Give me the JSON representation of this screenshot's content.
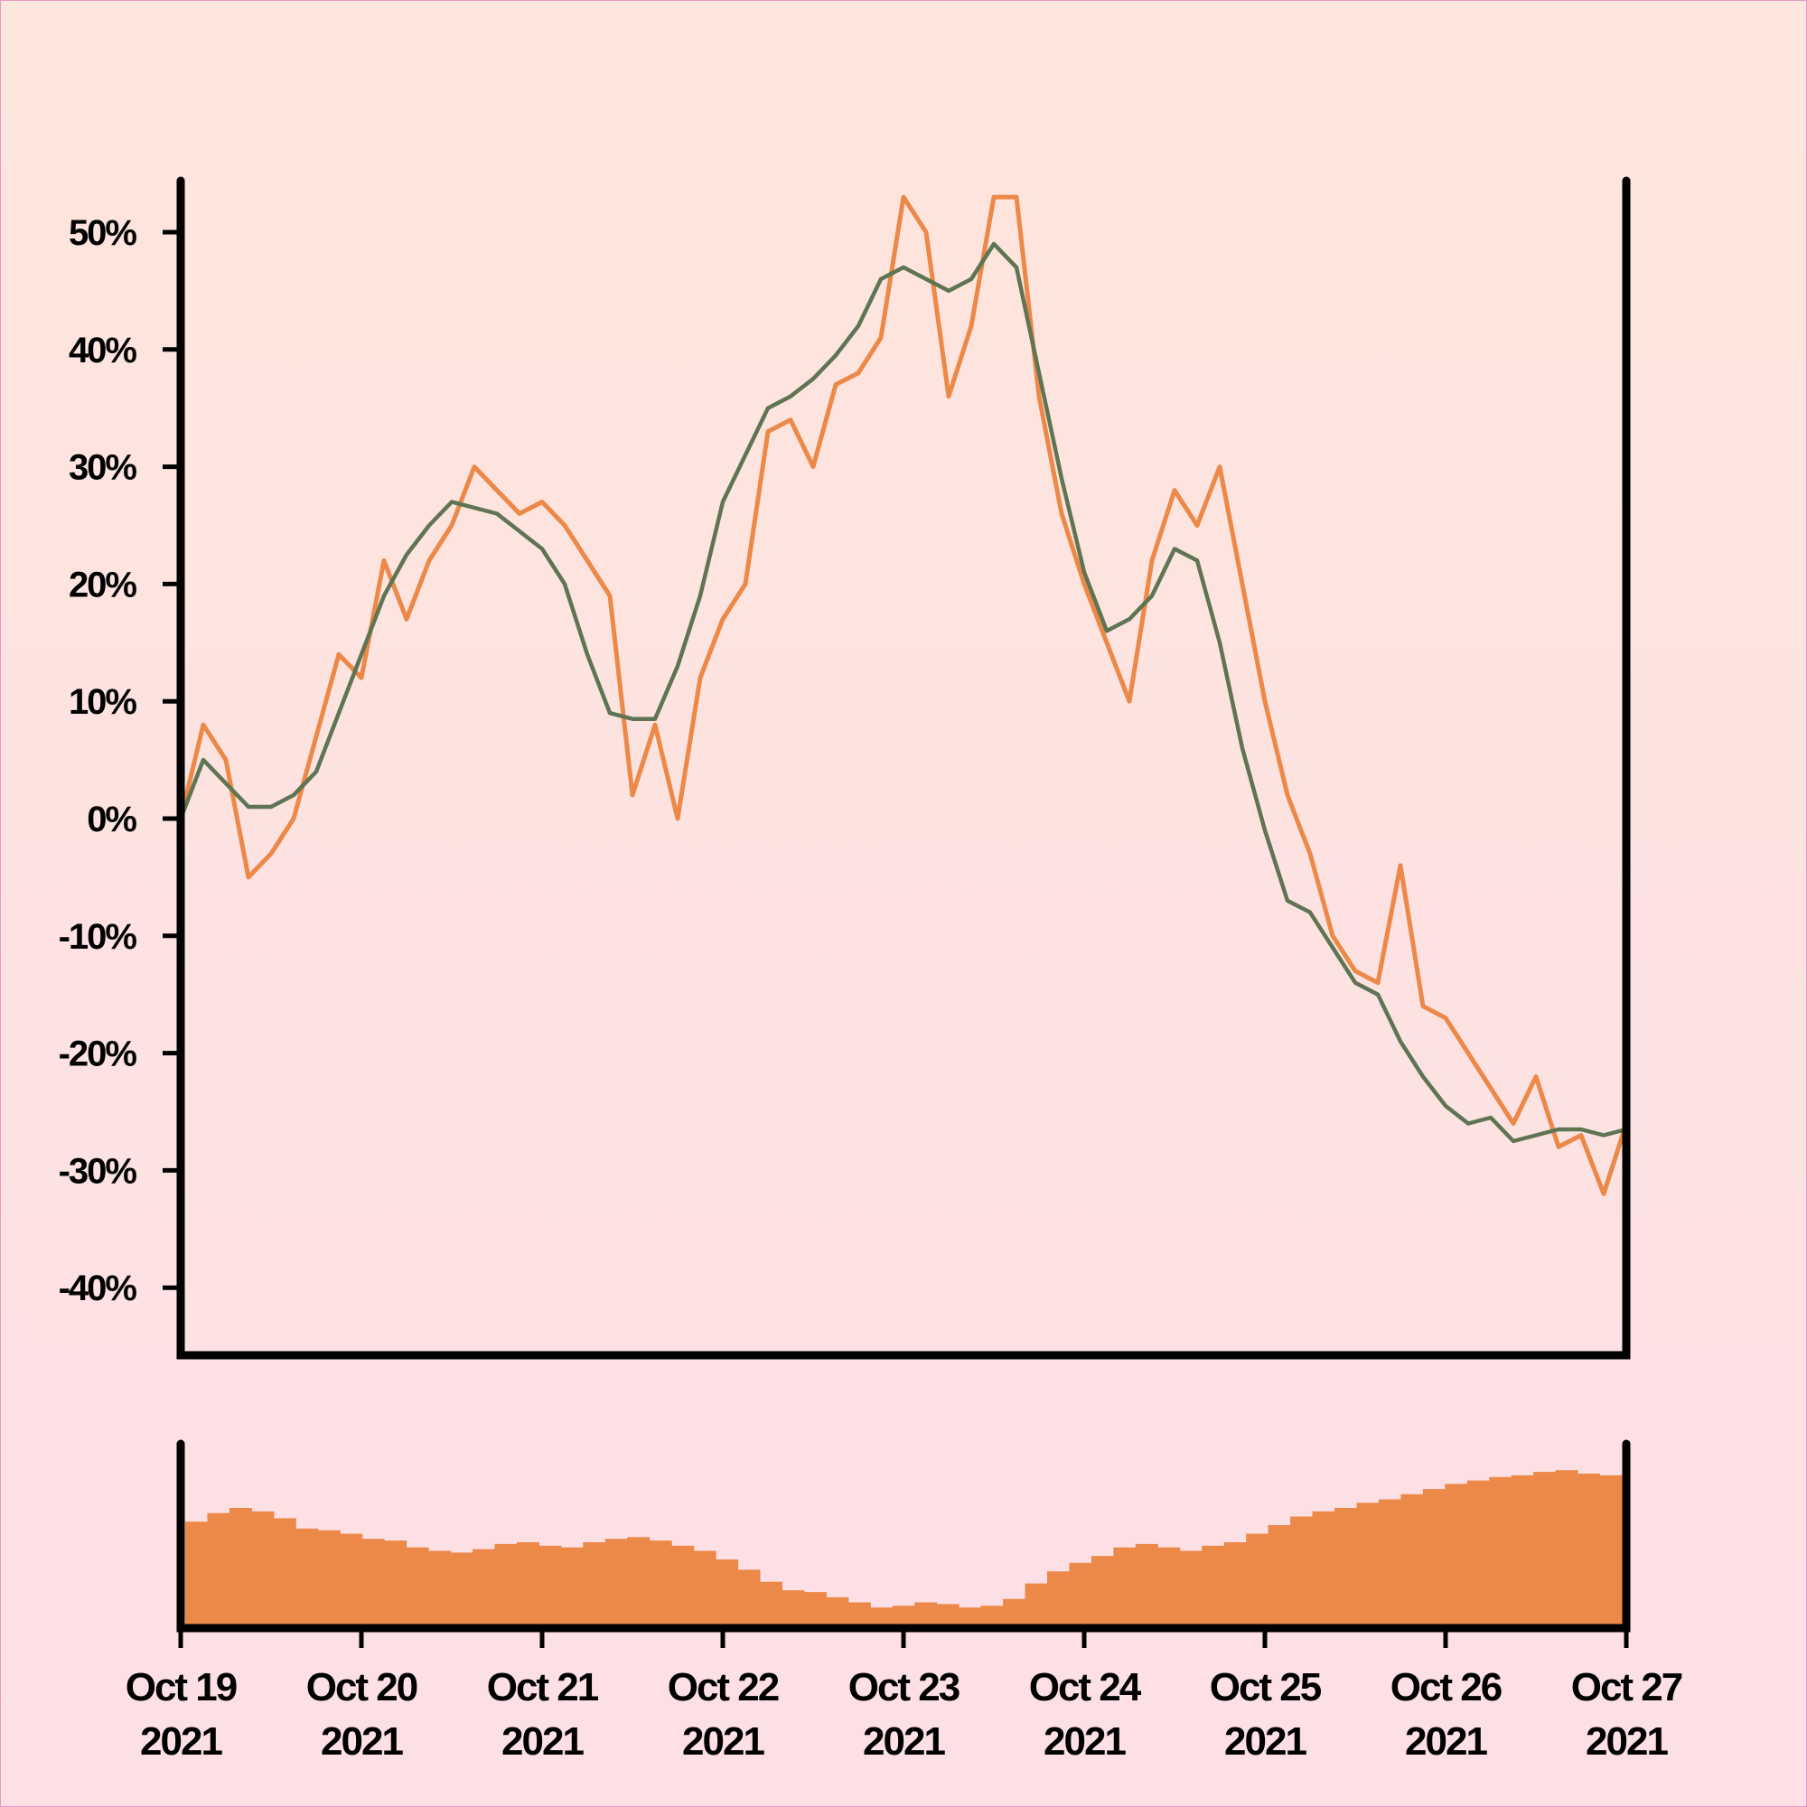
{
  "colors": {
    "price_line": "#ec8848",
    "moving_average": "#5e7452",
    "volume_bars": "#ec8848",
    "axes": "#000000"
  },
  "chart_data": {
    "type": "line",
    "title": "",
    "xlabel": "",
    "ylabel": "",
    "grid": false,
    "legend": "none",
    "x_range": [
      "2021-10-19",
      "2021-10-27"
    ],
    "ylim": [
      -45,
      54
    ],
    "y_ticks": [
      "50%",
      "40%",
      "30%",
      "20%",
      "10%",
      "0%",
      "-10%",
      "-20%",
      "-30%",
      "-40%"
    ],
    "y_tick_values": [
      50,
      40,
      30,
      20,
      10,
      0,
      -10,
      -20,
      -30,
      -40
    ],
    "x_ticks": [
      {
        "date": "2021-10-19",
        "line1": "Oct 19",
        "line2": "2021"
      },
      {
        "date": "2021-10-20",
        "line1": "Oct 20",
        "line2": "2021"
      },
      {
        "date": "2021-10-21",
        "line1": "Oct 21",
        "line2": "2021"
      },
      {
        "date": "2021-10-22",
        "line1": "Oct 22",
        "line2": "2021"
      },
      {
        "date": "2021-10-23",
        "line1": "Oct 23",
        "line2": "2021"
      },
      {
        "date": "2021-10-24",
        "line1": "Oct 24",
        "line2": "2021"
      },
      {
        "date": "2021-10-25",
        "line1": "Oct 25",
        "line2": "2021"
      },
      {
        "date": "2021-10-26",
        "line1": "Oct 26",
        "line2": "2021"
      },
      {
        "date": "2021-10-27",
        "line1": "Oct 27",
        "line2": "2021"
      }
    ],
    "series": [
      {
        "type": "line",
        "x": [
          "2021-10-19 00:00",
          "2021-10-19 03:00",
          "2021-10-19 06:00",
          "2021-10-19 09:00",
          "2021-10-19 12:00",
          "2021-10-19 15:00",
          "2021-10-19 18:00",
          "2021-10-19 21:00",
          "2021-10-20 00:00",
          "2021-10-20 03:00",
          "2021-10-20 06:00",
          "2021-10-20 09:00",
          "2021-10-20 12:00",
          "2021-10-20 15:00",
          "2021-10-20 18:00",
          "2021-10-20 21:00",
          "2021-10-21 00:00",
          "2021-10-21 03:00",
          "2021-10-21 06:00",
          "2021-10-21 09:00",
          "2021-10-21 12:00",
          "2021-10-21 15:00",
          "2021-10-21 18:00",
          "2021-10-21 21:00",
          "2021-10-22 00:00",
          "2021-10-22 03:00",
          "2021-10-22 06:00",
          "2021-10-22 09:00",
          "2021-10-22 12:00",
          "2021-10-22 15:00",
          "2021-10-22 18:00",
          "2021-10-22 21:00",
          "2021-10-23 00:00",
          "2021-10-23 03:00",
          "2021-10-23 06:00",
          "2021-10-23 09:00",
          "2021-10-23 12:00",
          "2021-10-23 15:00",
          "2021-10-23 18:00",
          "2021-10-23 21:00",
          "2021-10-24 00:00",
          "2021-10-24 03:00",
          "2021-10-24 06:00",
          "2021-10-24 09:00",
          "2021-10-24 12:00",
          "2021-10-24 15:00",
          "2021-10-24 18:00",
          "2021-10-24 21:00",
          "2021-10-25 00:00",
          "2021-10-25 03:00",
          "2021-10-25 06:00",
          "2021-10-25 09:00",
          "2021-10-25 12:00",
          "2021-10-25 15:00",
          "2021-10-25 18:00",
          "2021-10-25 21:00",
          "2021-10-26 00:00",
          "2021-10-26 03:00",
          "2021-10-26 06:00",
          "2021-10-26 09:00",
          "2021-10-26 12:00",
          "2021-10-26 15:00",
          "2021-10-26 18:00",
          "2021-10-26 21:00",
          "2021-10-27 00:00"
        ],
        "values": [
          0,
          8,
          5,
          -5,
          -3,
          0,
          7,
          14,
          12,
          22,
          17,
          22,
          25,
          30,
          28,
          26,
          27,
          25,
          22,
          19,
          2,
          8,
          0,
          12,
          17,
          20,
          33,
          34,
          30,
          37,
          38,
          41,
          53,
          50,
          36,
          42,
          53,
          53,
          36,
          26,
          20,
          15,
          10,
          22,
          28,
          25,
          30,
          20,
          10,
          2,
          -3,
          -10,
          -13,
          -14,
          -4,
          -16,
          -17,
          -20,
          -23,
          -26,
          -22,
          -28,
          -27,
          -32,
          -26
        ]
      },
      {
        "type": "line",
        "x": [
          "2021-10-19 00:00",
          "2021-10-19 03:00",
          "2021-10-19 06:00",
          "2021-10-19 09:00",
          "2021-10-19 12:00",
          "2021-10-19 15:00",
          "2021-10-19 18:00",
          "2021-10-19 21:00",
          "2021-10-20 00:00",
          "2021-10-20 03:00",
          "2021-10-20 06:00",
          "2021-10-20 09:00",
          "2021-10-20 12:00",
          "2021-10-20 15:00",
          "2021-10-20 18:00",
          "2021-10-20 21:00",
          "2021-10-21 00:00",
          "2021-10-21 03:00",
          "2021-10-21 06:00",
          "2021-10-21 09:00",
          "2021-10-21 12:00",
          "2021-10-21 15:00",
          "2021-10-21 18:00",
          "2021-10-21 21:00",
          "2021-10-22 00:00",
          "2021-10-22 03:00",
          "2021-10-22 06:00",
          "2021-10-22 09:00",
          "2021-10-22 12:00",
          "2021-10-22 15:00",
          "2021-10-22 18:00",
          "2021-10-22 21:00",
          "2021-10-23 00:00",
          "2021-10-23 03:00",
          "2021-10-23 06:00",
          "2021-10-23 09:00",
          "2021-10-23 12:00",
          "2021-10-23 15:00",
          "2021-10-23 18:00",
          "2021-10-23 21:00",
          "2021-10-24 00:00",
          "2021-10-24 03:00",
          "2021-10-24 06:00",
          "2021-10-24 09:00",
          "2021-10-24 12:00",
          "2021-10-24 15:00",
          "2021-10-24 18:00",
          "2021-10-24 21:00",
          "2021-10-25 00:00",
          "2021-10-25 03:00",
          "2021-10-25 06:00",
          "2021-10-25 09:00",
          "2021-10-25 12:00",
          "2021-10-25 15:00",
          "2021-10-25 18:00",
          "2021-10-25 21:00",
          "2021-10-26 00:00",
          "2021-10-26 03:00",
          "2021-10-26 06:00",
          "2021-10-26 09:00",
          "2021-10-26 12:00",
          "2021-10-26 15:00",
          "2021-10-26 18:00",
          "2021-10-26 21:00",
          "2021-10-27 00:00"
        ],
        "values": [
          0,
          5,
          3,
          1,
          1,
          2,
          4,
          9,
          14,
          19,
          22.5,
          25,
          27,
          26.5,
          26,
          24.5,
          23,
          20,
          14,
          9,
          8.5,
          8.5,
          13,
          19,
          27,
          31,
          35,
          36,
          37.5,
          39.5,
          42,
          46,
          47,
          46,
          45,
          46,
          49,
          47,
          38,
          29,
          21,
          16,
          17,
          19,
          23,
          22,
          15,
          6,
          -1,
          -7,
          -8,
          -11,
          -14,
          -15,
          -19,
          -22,
          -24.5,
          -26,
          -25.5,
          -27.5,
          -27,
          -26.5,
          -26.5,
          -27,
          -26.5
        ]
      }
    ],
    "volume": {
      "type": "bar",
      "x_range": [
        "2021-10-19",
        "2021-10-27"
      ],
      "values": [
        62,
        67,
        70,
        68,
        64,
        58,
        57,
        55,
        52,
        51,
        47,
        45,
        44,
        46,
        49,
        50,
        48,
        47,
        50,
        52,
        53,
        51,
        48,
        45,
        40,
        34,
        27,
        22,
        21,
        18,
        15,
        12,
        13,
        15,
        14,
        12,
        13,
        17,
        26,
        33,
        38,
        42,
        47,
        49,
        47,
        45,
        48,
        50,
        55,
        60,
        65,
        68,
        70,
        73,
        75,
        78,
        81,
        84,
        86,
        88,
        89,
        91,
        92,
        90,
        89
      ]
    }
  }
}
